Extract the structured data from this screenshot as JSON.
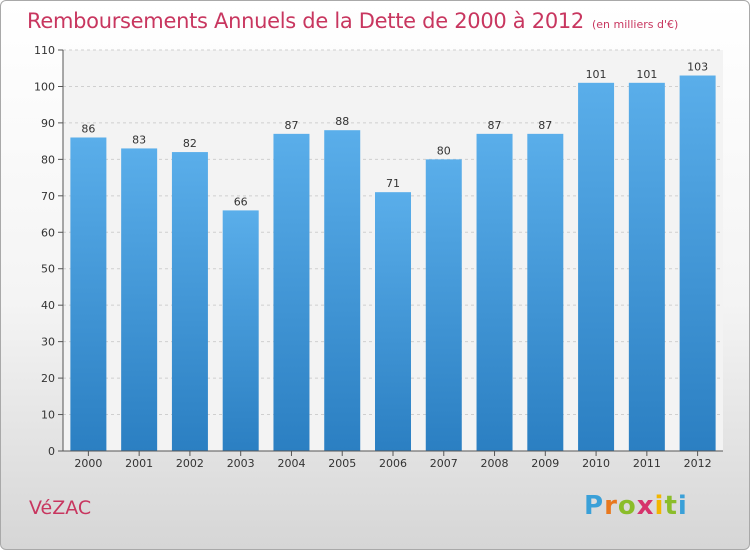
{
  "header": {
    "title": "Remboursements Annuels de la Dette de 2000 à 2012",
    "subtitle": "(en milliers d'€)"
  },
  "commune": "VéZAC",
  "logo": {
    "letters": [
      "P",
      "r",
      "o",
      "x",
      "i",
      "t",
      "i"
    ],
    "colors": [
      "#3aa0d8",
      "#e8781e",
      "#8bbd2a",
      "#d6336c",
      "#f2b600",
      "#8bbd2a",
      "#3aa0d8"
    ]
  },
  "colors": {
    "bar_light": "#5aaeea",
    "bar_dark": "#2b7fc2",
    "title": "#c8365f"
  },
  "chart_data": {
    "type": "bar",
    "categories": [
      "2000",
      "2001",
      "2002",
      "2003",
      "2004",
      "2005",
      "2006",
      "2007",
      "2008",
      "2009",
      "2010",
      "2011",
      "2012"
    ],
    "values": [
      86,
      83,
      82,
      66,
      87,
      88,
      71,
      80,
      87,
      87,
      101,
      101,
      103
    ],
    "ylim": [
      0,
      110
    ],
    "yticks": [
      0,
      10,
      20,
      30,
      40,
      50,
      60,
      70,
      80,
      90,
      100,
      110
    ],
    "grid": true
  }
}
